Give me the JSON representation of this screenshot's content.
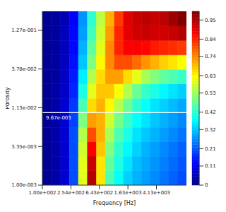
{
  "chart_data": {
    "type": "heatmap",
    "x_label": "Frequency [Hz]",
    "y_label": "Porosity",
    "log": true,
    "xlim": [
      100,
      11000
    ],
    "ylim": [
      0.001,
      0.23
    ],
    "xticks": [
      {
        "value": 100,
        "label": "1.00e+002"
      },
      {
        "value": 254,
        "label": "2.54e+002"
      },
      {
        "value": 643,
        "label": "6.43e+002"
      },
      {
        "value": 1630,
        "label": "1.63e+003"
      },
      {
        "value": 4130,
        "label": "4.13e+003"
      }
    ],
    "yticks": [
      {
        "value": 0.001,
        "label": "1.00e-003"
      },
      {
        "value": 0.00335,
        "label": "3.35e-003"
      },
      {
        "value": 0.0113,
        "label": "1.13e-002"
      },
      {
        "value": 0.0378,
        "label": "3.78e-002"
      },
      {
        "value": 0.127,
        "label": "1.27e-001"
      }
    ],
    "x_bins": [
      100,
      134,
      180,
      241,
      324,
      434,
      583,
      782,
      1049,
      1407,
      1888,
      2533,
      3398,
      4559,
      6116,
      8205,
      11000
    ],
    "y_bins": [
      0.001,
      0.00157,
      0.00247,
      0.00389,
      0.00611,
      0.00961,
      0.0151,
      0.0238,
      0.0374,
      0.0588,
      0.0925,
      0.1455,
      0.23
    ],
    "cells": [
      [
        0.02,
        0.04,
        0.08,
        0.2,
        0.6,
        0.95,
        0.65,
        0.45,
        0.38,
        0.33,
        0.3,
        0.28,
        0.26,
        0.24,
        0.22,
        0.2
      ],
      [
        0.02,
        0.04,
        0.08,
        0.2,
        0.6,
        0.93,
        0.65,
        0.47,
        0.4,
        0.35,
        0.31,
        0.29,
        0.27,
        0.25,
        0.23,
        0.21
      ],
      [
        0.02,
        0.04,
        0.08,
        0.2,
        0.58,
        0.88,
        0.68,
        0.5,
        0.42,
        0.37,
        0.33,
        0.3,
        0.28,
        0.26,
        0.24,
        0.22
      ],
      [
        0.02,
        0.04,
        0.08,
        0.2,
        0.55,
        0.8,
        0.7,
        0.54,
        0.45,
        0.4,
        0.35,
        0.32,
        0.3,
        0.28,
        0.26,
        0.24
      ],
      [
        0.02,
        0.04,
        0.08,
        0.19,
        0.5,
        0.72,
        0.7,
        0.58,
        0.49,
        0.43,
        0.38,
        0.35,
        0.32,
        0.3,
        0.28,
        0.26
      ],
      [
        0.02,
        0.04,
        0.08,
        0.18,
        0.45,
        0.66,
        0.7,
        0.63,
        0.55,
        0.48,
        0.42,
        0.38,
        0.35,
        0.33,
        0.31,
        0.29
      ],
      [
        0.02,
        0.04,
        0.07,
        0.16,
        0.4,
        0.6,
        0.68,
        0.68,
        0.62,
        0.55,
        0.48,
        0.43,
        0.4,
        0.37,
        0.35,
        0.33
      ],
      [
        0.02,
        0.03,
        0.07,
        0.15,
        0.36,
        0.55,
        0.66,
        0.72,
        0.72,
        0.66,
        0.6,
        0.54,
        0.5,
        0.47,
        0.45,
        0.43
      ],
      [
        0.02,
        0.03,
        0.06,
        0.14,
        0.32,
        0.5,
        0.63,
        0.74,
        0.8,
        0.8,
        0.77,
        0.73,
        0.7,
        0.67,
        0.65,
        0.62
      ],
      [
        0.02,
        0.03,
        0.06,
        0.13,
        0.3,
        0.47,
        0.6,
        0.74,
        0.84,
        0.88,
        0.88,
        0.87,
        0.85,
        0.84,
        0.83,
        0.82
      ],
      [
        0.02,
        0.03,
        0.06,
        0.13,
        0.28,
        0.44,
        0.58,
        0.72,
        0.84,
        0.9,
        0.92,
        0.93,
        0.92,
        0.92,
        0.93,
        0.95
      ],
      [
        0.02,
        0.03,
        0.05,
        0.12,
        0.27,
        0.42,
        0.56,
        0.7,
        0.82,
        0.9,
        0.93,
        0.94,
        0.93,
        0.94,
        0.97,
        1.0
      ]
    ],
    "colorbar": {
      "range": [
        0,
        1
      ],
      "ticks": [
        0,
        0.11,
        0.21,
        0.32,
        0.42,
        0.53,
        0.63,
        0.74,
        0.84,
        0.95
      ]
    },
    "annotations": [
      {
        "y": 0.00967,
        "label": "9.67e-003"
      }
    ]
  }
}
